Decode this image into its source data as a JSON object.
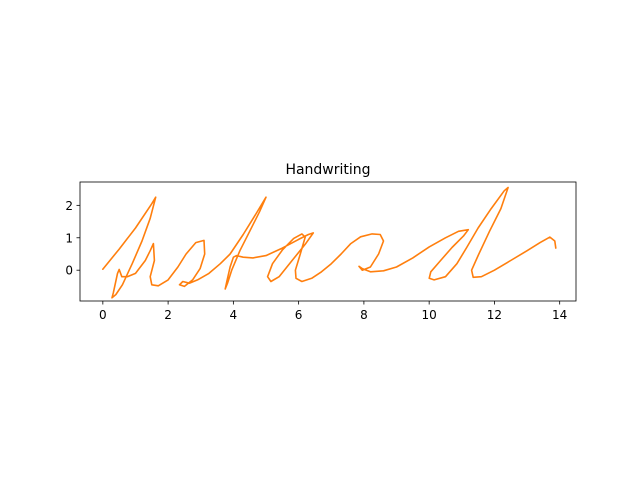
{
  "chart_data": {
    "type": "line",
    "title": "Handwriting",
    "xlabel": "",
    "ylabel": "",
    "xlim": [
      -0.7,
      14.5
    ],
    "ylim": [
      -0.95,
      2.72
    ],
    "x_ticks": [
      0,
      2,
      4,
      6,
      8,
      10,
      12,
      14
    ],
    "y_ticks": [
      0,
      1,
      2
    ],
    "grid": false,
    "series": [
      {
        "color": "#ff7f0e",
        "strokes": [
          [
            [
              0.0,
              0.03
            ],
            [
              0.5,
              0.65
            ],
            [
              1.0,
              1.3
            ],
            [
              1.5,
              2.05
            ],
            [
              1.62,
              2.25
            ],
            [
              1.45,
              1.6
            ],
            [
              1.2,
              0.9
            ],
            [
              0.9,
              0.2
            ],
            [
              0.6,
              -0.45
            ],
            [
              0.4,
              -0.75
            ],
            [
              0.28,
              -0.85
            ],
            [
              0.32,
              -0.7
            ],
            [
              0.45,
              -0.1
            ],
            [
              0.5,
              0.02
            ],
            [
              0.58,
              -0.2
            ],
            [
              0.75,
              -0.2
            ],
            [
              1.0,
              -0.1
            ],
            [
              1.3,
              0.3
            ],
            [
              1.45,
              0.6
            ],
            [
              1.55,
              0.82
            ],
            [
              1.58,
              0.3
            ],
            [
              1.45,
              -0.2
            ],
            [
              1.5,
              -0.45
            ],
            [
              1.7,
              -0.48
            ],
            [
              2.0,
              -0.3
            ],
            [
              2.3,
              0.1
            ],
            [
              2.55,
              0.5
            ],
            [
              2.85,
              0.85
            ],
            [
              3.1,
              0.92
            ],
            [
              3.12,
              0.5
            ],
            [
              2.98,
              0.05
            ],
            [
              2.75,
              -0.3
            ],
            [
              2.5,
              -0.5
            ],
            [
              2.35,
              -0.45
            ],
            [
              2.45,
              -0.35
            ],
            [
              2.65,
              -0.4
            ],
            [
              2.9,
              -0.3
            ],
            [
              3.25,
              -0.1
            ],
            [
              3.6,
              0.2
            ],
            [
              3.9,
              0.5
            ],
            [
              4.3,
              1.1
            ],
            [
              4.7,
              1.75
            ],
            [
              5.0,
              2.25
            ],
            [
              4.8,
              1.8
            ],
            [
              4.5,
              1.2
            ],
            [
              4.2,
              0.6
            ],
            [
              3.95,
              0.0
            ],
            [
              3.82,
              -0.4
            ],
            [
              3.75,
              -0.58
            ],
            [
              3.8,
              -0.35
            ],
            [
              3.9,
              0.1
            ],
            [
              4.0,
              0.4
            ],
            [
              4.1,
              0.45
            ],
            [
              4.3,
              0.4
            ],
            [
              4.6,
              0.38
            ],
            [
              5.0,
              0.45
            ],
            [
              5.5,
              0.68
            ],
            [
              6.0,
              0.95
            ],
            [
              6.3,
              1.1
            ],
            [
              6.45,
              1.15
            ],
            [
              6.2,
              0.8
            ],
            [
              5.8,
              0.3
            ],
            [
              5.4,
              -0.2
            ],
            [
              5.15,
              -0.35
            ],
            [
              5.05,
              -0.2
            ],
            [
              5.2,
              0.2
            ],
            [
              5.5,
              0.62
            ],
            [
              5.85,
              0.98
            ],
            [
              6.1,
              1.12
            ],
            [
              6.2,
              1.02
            ],
            [
              6.05,
              0.5
            ],
            [
              5.9,
              0.0
            ],
            [
              5.92,
              -0.25
            ],
            [
              6.1,
              -0.35
            ],
            [
              6.4,
              -0.25
            ],
            [
              6.7,
              -0.05
            ],
            [
              7.0,
              0.2
            ],
            [
              7.3,
              0.5
            ],
            [
              7.6,
              0.82
            ],
            [
              7.9,
              1.03
            ],
            [
              8.25,
              1.12
            ],
            [
              8.5,
              1.1
            ],
            [
              8.6,
              0.9
            ],
            [
              8.45,
              0.5
            ],
            [
              8.2,
              0.1
            ],
            [
              7.95,
              0.0
            ],
            [
              7.85,
              0.12
            ],
            [
              7.95,
              0.05
            ],
            [
              8.2,
              -0.05
            ],
            [
              8.6,
              -0.02
            ],
            [
              9.0,
              0.1
            ],
            [
              9.5,
              0.38
            ],
            [
              10.0,
              0.72
            ],
            [
              10.5,
              1.0
            ],
            [
              10.9,
              1.2
            ],
            [
              11.2,
              1.25
            ],
            [
              11.05,
              1.05
            ],
            [
              10.7,
              0.7
            ],
            [
              10.35,
              0.3
            ],
            [
              10.05,
              -0.05
            ],
            [
              10.0,
              -0.25
            ],
            [
              10.15,
              -0.3
            ],
            [
              10.5,
              -0.2
            ],
            [
              10.85,
              0.2
            ],
            [
              11.15,
              0.7
            ],
            [
              11.5,
              1.3
            ],
            [
              11.9,
              1.9
            ],
            [
              12.3,
              2.45
            ],
            [
              12.42,
              2.55
            ],
            [
              12.2,
              1.9
            ],
            [
              11.85,
              1.2
            ],
            [
              11.5,
              0.45
            ],
            [
              11.3,
              0.0
            ],
            [
              11.35,
              -0.22
            ],
            [
              11.6,
              -0.2
            ],
            [
              12.0,
              0.0
            ],
            [
              12.5,
              0.3
            ],
            [
              13.0,
              0.6
            ],
            [
              13.4,
              0.85
            ],
            [
              13.7,
              1.02
            ],
            [
              13.85,
              0.9
            ],
            [
              13.88,
              0.68
            ]
          ]
        ]
      }
    ]
  }
}
